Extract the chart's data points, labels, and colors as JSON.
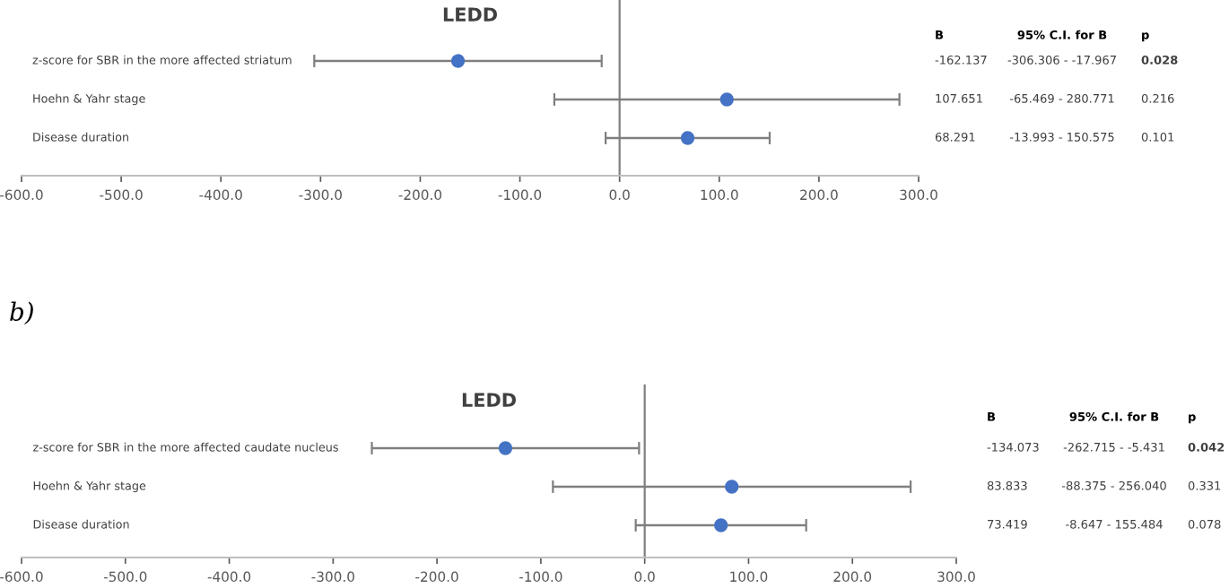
{
  "chart_data": [
    {
      "type": "scatter",
      "orientation": "horizontal",
      "title": "LEDD",
      "marker": "circle",
      "color": "#4472c4",
      "tick_labels": "x",
      "categories": [
        "z-score for SBR in the more affected striatum",
        "Hoehn & Yahr stage",
        "Disease duration"
      ],
      "values": [
        -162.137,
        107.651,
        68.291
      ],
      "errors": [
        [
          -306.306,
          -17.967
        ],
        [
          -65.469,
          280.771
        ],
        [
          -13.993,
          150.575
        ]
      ],
      "xlim": [
        -600,
        300
      ],
      "xticks": [
        {
          "value": -600,
          "label": "-600.0"
        },
        {
          "value": -500,
          "label": "-500.0"
        },
        {
          "value": -400,
          "label": "-400.0"
        },
        {
          "value": -300,
          "label": "-300.0"
        },
        {
          "value": -200,
          "label": "-200.0"
        },
        {
          "value": -100,
          "label": "-100.0"
        },
        {
          "value": 0,
          "label": "0.0"
        },
        {
          "value": 100,
          "label": "100.0"
        },
        {
          "value": 200,
          "label": "200.0"
        },
        {
          "value": 300,
          "label": "300.0"
        }
      ],
      "annotations": [
        "B",
        "95% C.I. for B",
        "p",
        "-162.137",
        "-306.306 - -17.967",
        "0.028",
        "107.651",
        "-65.469 - 280.771",
        "0.216",
        "68.291",
        "-13.993 - 150.575",
        "0.101"
      ]
    },
    {
      "type": "scatter",
      "orientation": "horizontal",
      "title": "LEDD",
      "marker": "circle",
      "color": "#4472c4",
      "tick_labels": "x",
      "categories": [
        "z-score for SBR in the more affected caudate nucleus",
        "Hoehn & Yahr stage",
        "Disease duration"
      ],
      "values": [
        -134.073,
        83.833,
        73.419
      ],
      "errors": [
        [
          -262.715,
          -5.431
        ],
        [
          -88.375,
          256.04
        ],
        [
          -8.647,
          155.484
        ]
      ],
      "xlim": [
        -600,
        300
      ],
      "xticks": [
        {
          "value": -600,
          "label": "-600.0"
        },
        {
          "value": -500,
          "label": "-500.0"
        },
        {
          "value": -400,
          "label": "-400.0"
        },
        {
          "value": -300,
          "label": "-300.0"
        },
        {
          "value": -200,
          "label": "-200.0"
        },
        {
          "value": -100,
          "label": "-100.0"
        },
        {
          "value": 0,
          "label": "0.0"
        },
        {
          "value": 100,
          "label": "100.0"
        },
        {
          "value": 200,
          "label": "200.0"
        },
        {
          "value": 300,
          "label": "300.0"
        }
      ],
      "annotations": [
        "b)",
        "B",
        "95% C.I. for B",
        "p",
        "-134.073",
        "-262.715 - -5.431",
        "0.042",
        "83.833",
        "-88.375 - 256.040",
        "0.331",
        "73.419",
        "-8.647 - 155.484",
        "0.078"
      ]
    }
  ]
}
